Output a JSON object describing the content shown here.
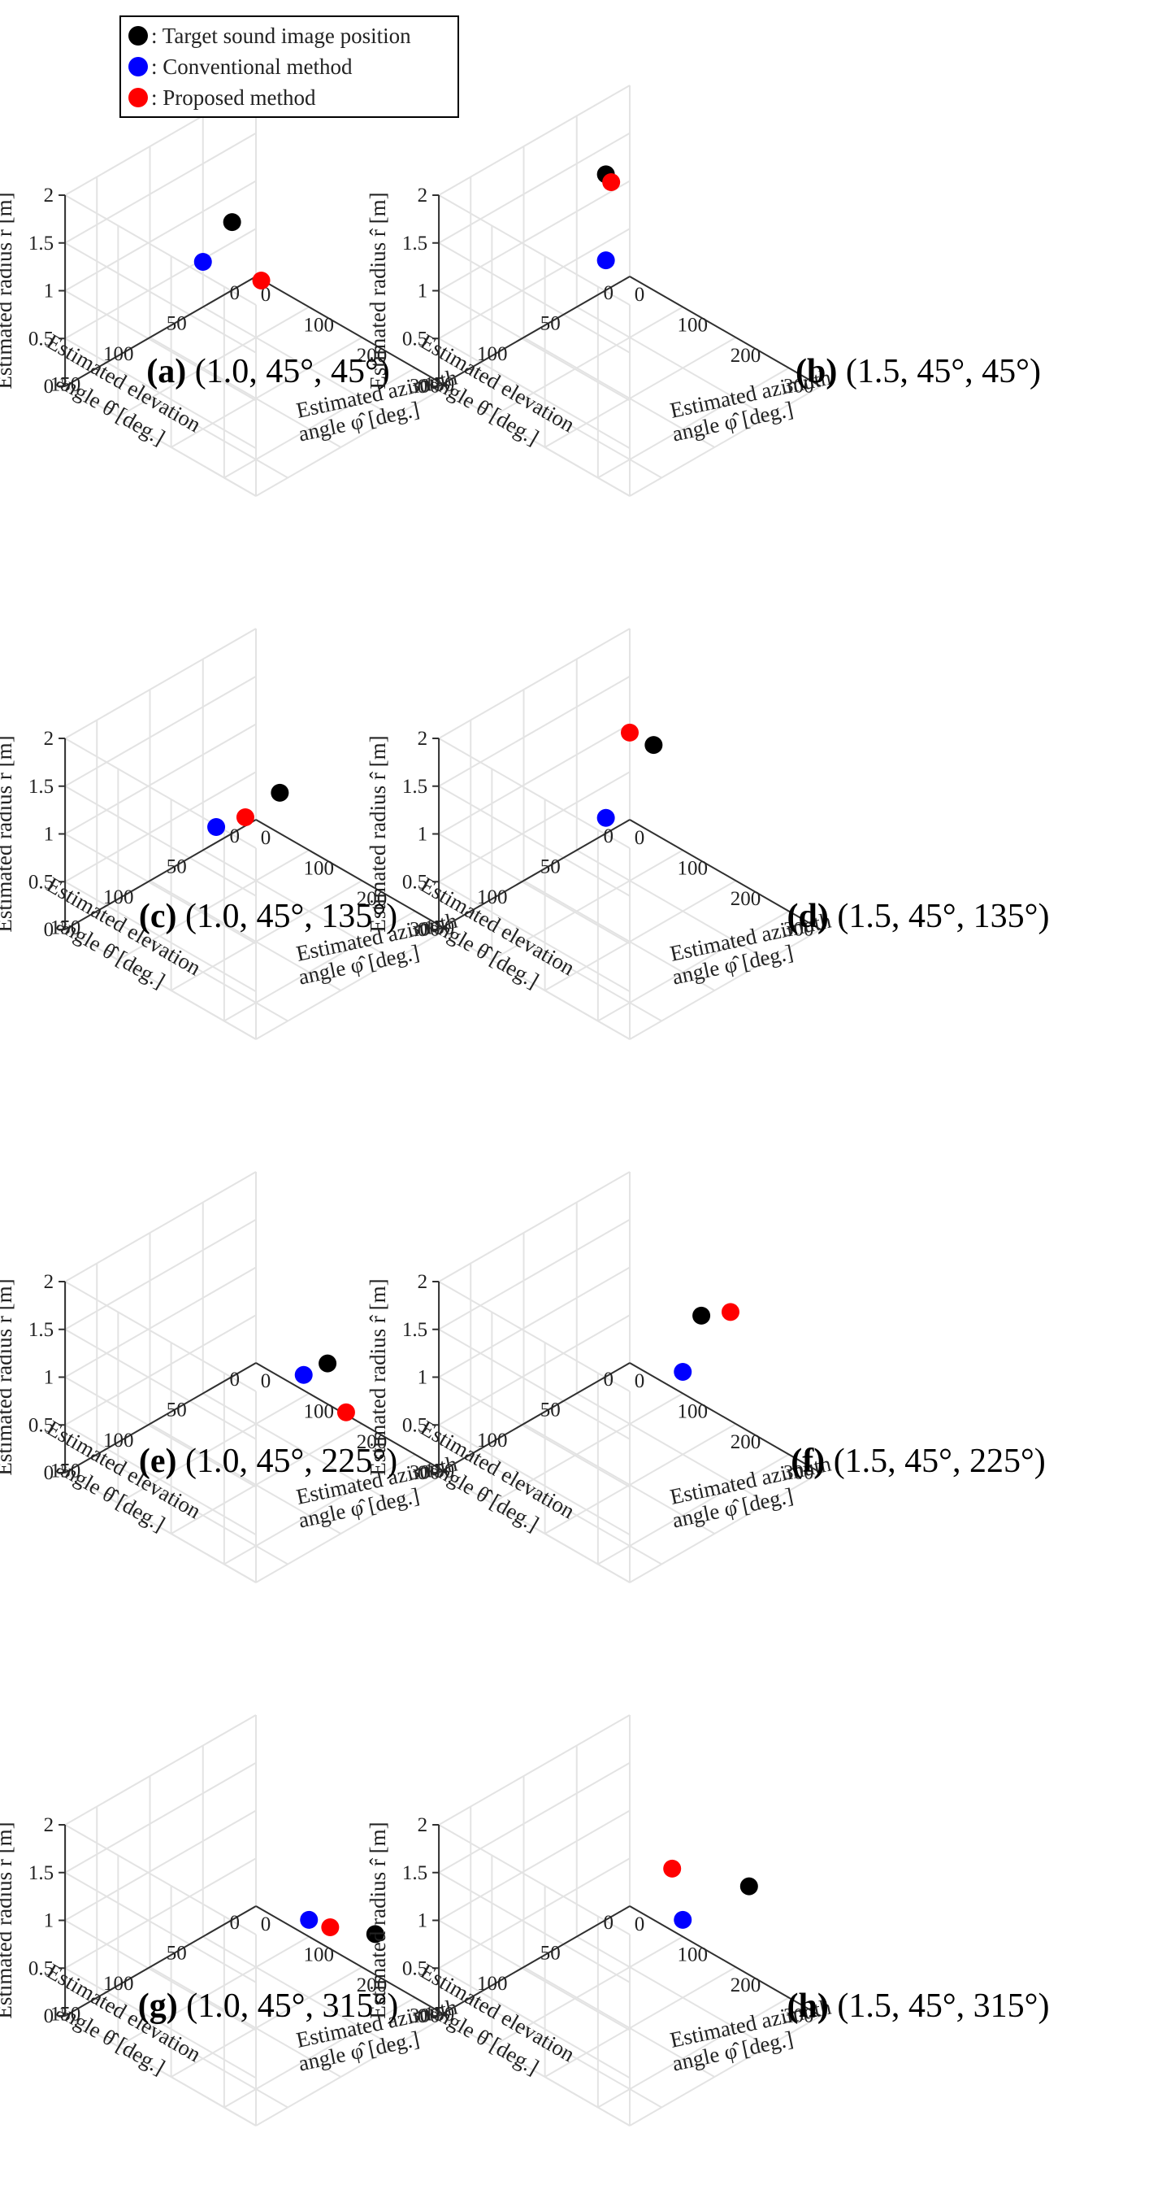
{
  "legend": {
    "items": [
      {
        "label": ": Target sound image position",
        "color": "#000000"
      },
      {
        "label": ": Conventional method",
        "color": "#0000ff"
      },
      {
        "label": ": Proposed method",
        "color": "#ff0000"
      }
    ]
  },
  "axis_labels": {
    "radius": "Estimated radius r̂ [m]",
    "elevation_line1": "Estimated elevation",
    "elevation_line2": "angle θ̂ [deg.]",
    "azimuth_line1": "Estimated azimuth",
    "azimuth_line2": "angle φ̂ [deg.]"
  },
  "chart_data": [
    {
      "type": "scatter",
      "panel_letter": "(a)",
      "caption": "(1.0, 45°, 45°)",
      "zlim": [
        0,
        2
      ],
      "z_ticks": [
        "0",
        "0.5",
        "1",
        "1.5",
        "2"
      ],
      "elevation_ticks": [
        "0",
        "50",
        "100",
        "150"
      ],
      "azimuth_ticks": [
        "0",
        "100",
        "200",
        "300"
      ],
      "grid": true,
      "legend": "top-left",
      "points": [
        {
          "series": "Target sound image position",
          "color": "#000000",
          "radius": 1.0,
          "elevation": 45,
          "azimuth": 45
        },
        {
          "series": "Conventional method",
          "color": "#0000ff",
          "radius": 0.6,
          "elevation": 60,
          "azimuth": 20
        },
        {
          "series": "Proposed method",
          "color": "#ff0000",
          "radius": 0.5,
          "elevation": 40,
          "azimuth": 90
        }
      ]
    },
    {
      "type": "scatter",
      "panel_letter": "(b)",
      "caption": "(1.5, 45°, 45°)",
      "zlim": [
        0,
        2
      ],
      "z_ticks": [
        "0",
        "0.5",
        "1",
        "1.5",
        "2"
      ],
      "elevation_ticks": [
        "0",
        "50",
        "100",
        "150"
      ],
      "azimuth_ticks": [
        "0",
        "100",
        "200",
        "300"
      ],
      "grid": true,
      "points": [
        {
          "series": "Target sound image position",
          "color": "#000000",
          "radius": 1.5,
          "elevation": 45,
          "azimuth": 45
        },
        {
          "series": "Conventional method",
          "color": "#0000ff",
          "radius": 0.6,
          "elevation": 45,
          "azimuth": 45
        },
        {
          "series": "Proposed method",
          "color": "#ff0000",
          "radius": 1.45,
          "elevation": 45,
          "azimuth": 55
        }
      ]
    },
    {
      "type": "scatter",
      "panel_letter": "(c)",
      "caption": "(1.0, 45°, 135°)",
      "zlim": [
        0,
        2
      ],
      "z_ticks": [
        "0",
        "0.5",
        "1",
        "1.5",
        "2"
      ],
      "elevation_ticks": [
        "0",
        "50",
        "100",
        "150"
      ],
      "azimuth_ticks": [
        "0",
        "100",
        "200",
        "300"
      ],
      "grid": true,
      "points": [
        {
          "series": "Target sound image position",
          "color": "#000000",
          "radius": 1.0,
          "elevation": 45,
          "azimuth": 135
        },
        {
          "series": "Conventional method",
          "color": "#0000ff",
          "radius": 0.45,
          "elevation": 60,
          "azimuth": 45
        },
        {
          "series": "Proposed method",
          "color": "#ff0000",
          "radius": 0.6,
          "elevation": 50,
          "azimuth": 80
        }
      ]
    },
    {
      "type": "scatter",
      "panel_letter": "(d)",
      "caption": "(1.5, 45°, 135°)",
      "zlim": [
        0,
        2
      ],
      "z_ticks": [
        "0",
        "0.5",
        "1",
        "1.5",
        "2"
      ],
      "elevation_ticks": [
        "0",
        "50",
        "100",
        "150"
      ],
      "azimuth_ticks": [
        "0",
        "100",
        "200",
        "300"
      ],
      "grid": true,
      "points": [
        {
          "series": "Target sound image position",
          "color": "#000000",
          "radius": 1.5,
          "elevation": 45,
          "azimuth": 135
        },
        {
          "series": "Conventional method",
          "color": "#0000ff",
          "radius": 0.45,
          "elevation": 45,
          "azimuth": 45
        },
        {
          "series": "Proposed method",
          "color": "#ff0000",
          "radius": 1.55,
          "elevation": 50,
          "azimuth": 100
        }
      ]
    },
    {
      "type": "scatter",
      "panel_letter": "(e)",
      "caption": "(1.0, 45°, 225°)",
      "zlim": [
        0,
        2
      ],
      "z_ticks": [
        "0",
        "0.5",
        "1",
        "1.5",
        "2"
      ],
      "elevation_ticks": [
        "0",
        "50",
        "100",
        "150"
      ],
      "azimuth_ticks": [
        "0",
        "100",
        "200",
        "300"
      ],
      "grid": true,
      "points": [
        {
          "series": "Target sound image position",
          "color": "#000000",
          "radius": 1.0,
          "elevation": 45,
          "azimuth": 225
        },
        {
          "series": "Conventional method",
          "color": "#0000ff",
          "radius": 0.8,
          "elevation": 50,
          "azimuth": 190
        },
        {
          "series": "Proposed method",
          "color": "#ff0000",
          "radius": 0.6,
          "elevation": 45,
          "azimuth": 260
        }
      ]
    },
    {
      "type": "scatter",
      "panel_letter": "(f)",
      "caption": "(1.5, 45°, 225°)",
      "zlim": [
        0,
        2
      ],
      "z_ticks": [
        "0",
        "0.5",
        "1",
        "1.5",
        "2"
      ],
      "elevation_ticks": [
        "0",
        "50",
        "100",
        "150"
      ],
      "azimuth_ticks": [
        "0",
        "100",
        "200",
        "300"
      ],
      "grid": true,
      "points": [
        {
          "series": "Target sound image position",
          "color": "#000000",
          "radius": 1.5,
          "elevation": 45,
          "azimuth": 225
        },
        {
          "series": "Conventional method",
          "color": "#0000ff",
          "radius": 0.8,
          "elevation": 45,
          "azimuth": 190
        },
        {
          "series": "Proposed method",
          "color": "#ff0000",
          "radius": 1.65,
          "elevation": 40,
          "azimuth": 270
        }
      ]
    },
    {
      "type": "scatter",
      "panel_letter": "(g)",
      "caption": "(1.0, 45°, 315°)",
      "zlim": [
        0,
        2
      ],
      "z_ticks": [
        "0",
        "0.5",
        "1",
        "1.5",
        "2"
      ],
      "elevation_ticks": [
        "0",
        "50",
        "100",
        "150"
      ],
      "azimuth_ticks": [
        "0",
        "100",
        "200",
        "300"
      ],
      "grid": true,
      "points": [
        {
          "series": "Target sound image position",
          "color": "#000000",
          "radius": 1.0,
          "elevation": 45,
          "azimuth": 315
        },
        {
          "series": "Conventional method",
          "color": "#0000ff",
          "radius": 0.75,
          "elevation": 45,
          "azimuth": 190
        },
        {
          "series": "Proposed method",
          "color": "#ff0000",
          "radius": 0.8,
          "elevation": 45,
          "azimuth": 230
        }
      ]
    },
    {
      "type": "scatter",
      "panel_letter": "(h)",
      "caption": "(1.5, 45°, 315°)",
      "zlim": [
        0,
        2
      ],
      "z_ticks": [
        "0",
        "0.5",
        "1",
        "1.5",
        "2"
      ],
      "elevation_ticks": [
        "0",
        "50",
        "100",
        "150"
      ],
      "azimuth_ticks": [
        "0",
        "100",
        "200",
        "300"
      ],
      "grid": true,
      "points": [
        {
          "series": "Target sound image position",
          "color": "#000000",
          "radius": 1.5,
          "elevation": 45,
          "azimuth": 315
        },
        {
          "series": "Conventional method",
          "color": "#0000ff",
          "radius": 0.75,
          "elevation": 45,
          "azimuth": 190
        },
        {
          "series": "Proposed method",
          "color": "#ff0000",
          "radius": 1.35,
          "elevation": 55,
          "azimuth": 190
        }
      ]
    }
  ]
}
